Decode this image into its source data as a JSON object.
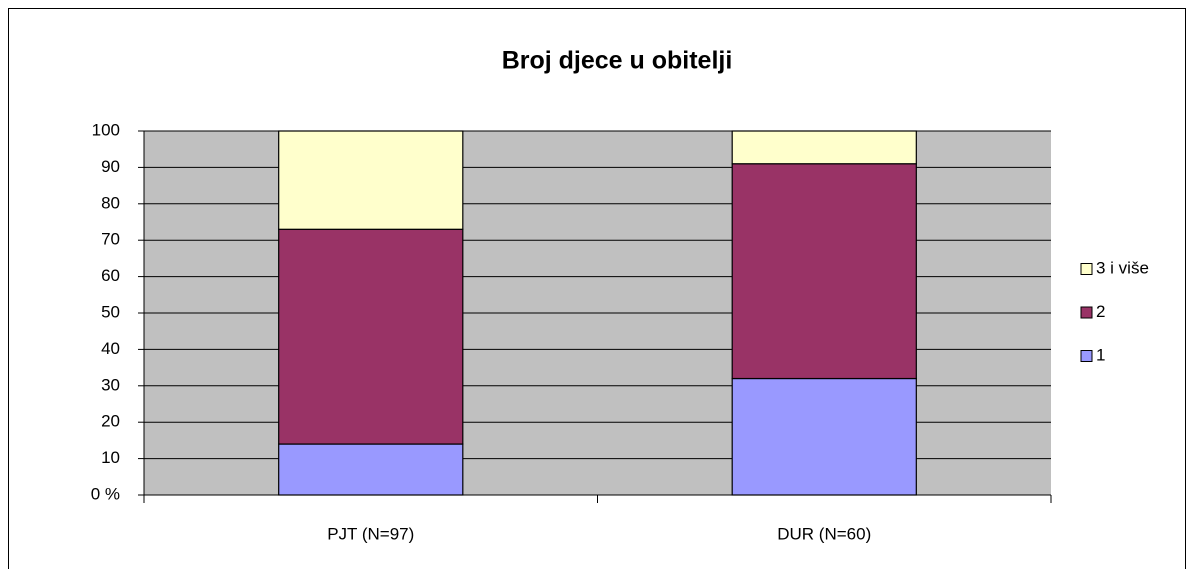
{
  "chart_data": {
    "type": "bar",
    "stacked": true,
    "title": "Broj djece u obitelji",
    "categories": [
      "PJT  (N=97)",
      "DUR  (N=60)"
    ],
    "series": [
      {
        "name": "1",
        "color": "#9999ff",
        "values": [
          14,
          32
        ]
      },
      {
        "name": "2",
        "color": "#993366",
        "values": [
          59,
          59
        ]
      },
      {
        "name": "3 i više",
        "color": "#ffffcc",
        "values": [
          27,
          9
        ]
      }
    ],
    "ylim": [
      0,
      100
    ],
    "yticks": [
      {
        "value": 0,
        "label": "0 %"
      },
      10,
      20,
      30,
      40,
      50,
      60,
      70,
      80,
      90,
      100
    ],
    "grid": true,
    "legend": "right",
    "plot_background": "#c0c0c0"
  }
}
